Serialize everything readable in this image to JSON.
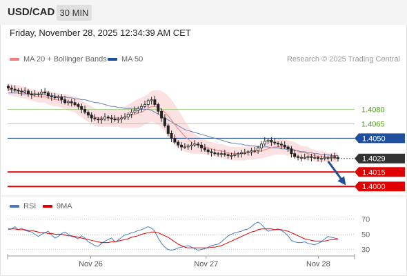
{
  "header": {
    "symbol": "USD/CAD",
    "timeframe": "30 MIN"
  },
  "datetime": "Friday, November 28, 2025 12:34:39 AM CET",
  "legend": {
    "ma20": {
      "label": "MA 20 + Bollinger Bands",
      "color": "#f08080"
    },
    "ma50": {
      "label": "MA 50",
      "color": "#1f4e9c"
    }
  },
  "credit": "Research © 2025 Trading Central",
  "rsi_legend": {
    "rsi": {
      "label": "RSI",
      "color": "#4a78c8"
    },
    "ma9": {
      "label": "9MA",
      "color": "#e00000"
    }
  },
  "chart_data": [
    {
      "type": "candlestick",
      "title": "USD/CAD 30 MIN",
      "ylim": [
        1.3993,
        1.4124
      ],
      "xlim": [
        0,
        100
      ],
      "x_ticks": [
        {
          "label": "Nov 26",
          "x": 25
        },
        {
          "label": "Nov 27",
          "x": 60
        },
        {
          "label": "Nov 28",
          "x": 94
        }
      ],
      "levels": [
        {
          "label": "1.4080",
          "value": 1.408,
          "color": "#a6d08a",
          "text_color": "#4d9a1a",
          "style": "resistance"
        },
        {
          "label": "1.4065",
          "value": 1.4065,
          "color": "#a6d08a",
          "text_color": "#4d9a1a",
          "style": "resistance"
        },
        {
          "label": "1.4050",
          "value": 1.405,
          "color": "#1f4e9c",
          "text_color": "#ffffff",
          "style": "pivot"
        },
        {
          "label": "1.4029",
          "value": 1.4029,
          "color": "#333333",
          "text_color": "#ffffff",
          "style": "current"
        },
        {
          "label": "1.4015",
          "value": 1.4015,
          "color": "#e00000",
          "text_color": "#ffffff",
          "style": "support"
        },
        {
          "label": "1.4000",
          "value": 1.4,
          "color": "#e00000",
          "text_color": "#ffffff",
          "style": "support"
        }
      ],
      "close": [
        1.4102,
        1.4101,
        1.41,
        1.4099,
        1.4098,
        1.4099,
        1.4096,
        1.4095,
        1.4096,
        1.4096,
        1.4098,
        1.4097,
        1.4094,
        1.4093,
        1.4092,
        1.4093,
        1.409,
        1.4087,
        1.4088,
        1.4087,
        1.4085,
        1.4083,
        1.408,
        1.4077,
        1.4074,
        1.4071,
        1.407,
        1.4069,
        1.407,
        1.4072,
        1.4071,
        1.407,
        1.4069,
        1.407,
        1.4071,
        1.4072,
        1.4075,
        1.4077,
        1.4079,
        1.4081,
        1.4083,
        1.4085,
        1.4089,
        1.409,
        1.4085,
        1.4078,
        1.4071,
        1.4063,
        1.4055,
        1.405,
        1.4046,
        1.4043,
        1.4041,
        1.4041,
        1.4042,
        1.4043,
        1.4044,
        1.4043,
        1.404,
        1.4038,
        1.4036,
        1.4035,
        1.4034,
        1.4034,
        1.4034,
        1.4033,
        1.4032,
        1.4032,
        1.4033,
        1.4034,
        1.4035,
        1.4035,
        1.4036,
        1.4037,
        1.4037,
        1.404,
        1.4044,
        1.4047,
        1.4048,
        1.4046,
        1.4045,
        1.4044,
        1.4043,
        1.4041,
        1.4039,
        1.4034,
        1.4031,
        1.403,
        1.403,
        1.403,
        1.4031,
        1.403,
        1.403,
        1.4029,
        1.4029,
        1.403,
        1.403,
        1.4031,
        1.403,
        1.4029
      ],
      "ma20": [
        1.4101,
        1.41,
        1.4099,
        1.4099,
        1.4098,
        1.4097,
        1.4096,
        1.4095,
        1.4094,
        1.4093,
        1.4093,
        1.4093,
        1.4092,
        1.4091,
        1.409,
        1.409,
        1.4089,
        1.4088,
        1.4087,
        1.4086,
        1.4085,
        1.4083,
        1.4081,
        1.4078,
        1.4076,
        1.4074,
        1.4072,
        1.4071,
        1.4071,
        1.4071,
        1.4071,
        1.4071,
        1.4071,
        1.4071,
        1.4071,
        1.4072,
        1.4073,
        1.4074,
        1.4075,
        1.4076,
        1.4077,
        1.4079,
        1.4081,
        1.4083,
        1.4083,
        1.4082,
        1.408,
        1.4077,
        1.4073,
        1.4069,
        1.4064,
        1.406,
        1.4056,
        1.4052,
        1.4049,
        1.4046,
        1.4044,
        1.4043,
        1.4042,
        1.4041,
        1.404,
        1.4039,
        1.4038,
        1.4037,
        1.4037,
        1.4036,
        1.4035,
        1.4034,
        1.4034,
        1.4034,
        1.4034,
        1.4034,
        1.4035,
        1.4035,
        1.4035,
        1.4036,
        1.4037,
        1.4038,
        1.4039,
        1.404,
        1.4041,
        1.4041,
        1.4041,
        1.4041,
        1.404,
        1.4039,
        1.4038,
        1.4036,
        1.4035,
        1.4035,
        1.4034,
        1.4033,
        1.4032,
        1.4031,
        1.4031,
        1.4031,
        1.403,
        1.403,
        1.403,
        1.403
      ],
      "ma50": [
        1.4097,
        1.4097,
        1.4097,
        1.4097,
        1.4096,
        1.4096,
        1.4096,
        1.4096,
        1.4096,
        1.4095,
        1.4095,
        1.4095,
        1.4094,
        1.4094,
        1.4094,
        1.4093,
        1.4093,
        1.4093,
        1.4092,
        1.4092,
        1.4091,
        1.4091,
        1.409,
        1.409,
        1.4089,
        1.4088,
        1.4087,
        1.4087,
        1.4086,
        1.4085,
        1.4084,
        1.4083,
        1.4083,
        1.4082,
        1.4082,
        1.4081,
        1.4081,
        1.4081,
        1.4081,
        1.408,
        1.408,
        1.408,
        1.408,
        1.4079,
        1.4077,
        1.4075,
        1.4073,
        1.4071,
        1.4069,
        1.4067,
        1.4065,
        1.4063,
        1.4061,
        1.4059,
        1.4058,
        1.4057,
        1.4056,
        1.4055,
        1.4054,
        1.4053,
        1.4052,
        1.4051,
        1.405,
        1.4049,
        1.4048,
        1.4047,
        1.4046,
        1.4045,
        1.4045,
        1.4044,
        1.4044,
        1.4043,
        1.4043,
        1.4042,
        1.4042,
        1.4041,
        1.4041,
        1.4041,
        1.4041,
        1.404,
        1.404,
        1.404,
        1.4039,
        1.4039,
        1.4038,
        1.4038,
        1.4037,
        1.4037,
        1.4036,
        1.4036,
        1.4035,
        1.4035,
        1.4034,
        1.4034,
        1.4033,
        1.4033,
        1.4033,
        1.4032,
        1.4032,
        1.4032
      ],
      "bb_halfwidth": [
        0.0006,
        0.0006,
        0.0006,
        0.0006,
        0.0006,
        0.0006,
        0.0006,
        0.0006,
        0.0006,
        0.0006,
        0.0006,
        0.0006,
        0.0007,
        0.0007,
        0.0007,
        0.0007,
        0.0007,
        0.0008,
        0.0008,
        0.0008,
        0.0008,
        0.0009,
        0.0009,
        0.0009,
        0.0009,
        0.0009,
        0.0009,
        0.0009,
        0.0009,
        0.0009,
        0.0009,
        0.0009,
        0.0009,
        0.0009,
        0.001,
        0.0011,
        0.0012,
        0.0013,
        0.0014,
        0.0015,
        0.0015,
        0.0015,
        0.0015,
        0.0016,
        0.0017,
        0.0018,
        0.0019,
        0.002,
        0.0021,
        0.0021,
        0.0021,
        0.002,
        0.0018,
        0.0016,
        0.0014,
        0.0012,
        0.001,
        0.0009,
        0.0008,
        0.0008,
        0.0007,
        0.0007,
        0.0007,
        0.0007,
        0.0007,
        0.0007,
        0.0007,
        0.0007,
        0.0007,
        0.0007,
        0.0007,
        0.0007,
        0.0007,
        0.0007,
        0.0007,
        0.0007,
        0.0008,
        0.0008,
        0.0008,
        0.0008,
        0.0008,
        0.0008,
        0.0008,
        0.0008,
        0.0008,
        0.0008,
        0.0008,
        0.0008,
        0.0007,
        0.0007,
        0.0007,
        0.0006,
        0.0006,
        0.0006,
        0.0006,
        0.0005,
        0.0005,
        0.0005,
        0.0005,
        0.0005
      ],
      "forecast_arrow": {
        "from": [
          97,
          1.4026
        ],
        "to": [
          102,
          1.4003
        ],
        "color": "#1f4e9c"
      }
    },
    {
      "type": "line",
      "title": "RSI",
      "ylim": [
        25,
        75
      ],
      "y_ticks": [
        70,
        50,
        30
      ],
      "series": [
        {
          "name": "RSI",
          "color": "#4a78c8",
          "values": [
            56,
            57,
            60,
            56,
            58,
            55,
            54,
            53,
            50,
            47,
            50,
            52,
            54,
            49,
            45,
            47,
            51,
            53,
            50,
            47,
            46,
            44,
            48,
            45,
            40,
            38,
            35,
            34,
            38,
            41,
            43,
            45,
            40,
            42,
            46,
            49,
            50,
            52,
            53,
            55,
            56,
            58,
            60,
            58,
            54,
            45,
            38,
            33,
            30,
            29,
            30,
            32,
            33,
            34,
            35,
            33,
            31,
            29,
            30,
            31,
            33,
            35,
            36,
            37,
            40,
            44,
            48,
            50,
            52,
            53,
            54,
            56,
            57,
            60,
            64,
            66,
            63,
            58,
            54,
            55,
            56,
            57,
            55,
            52,
            48,
            42,
            40,
            39,
            39,
            40,
            38,
            37,
            36,
            38,
            40,
            44,
            47,
            46,
            45,
            44
          ]
        },
        {
          "name": "9MA",
          "color": "#e00000",
          "values": [
            57,
            57,
            57,
            56,
            56,
            56,
            55,
            55,
            54,
            53,
            52,
            52,
            51,
            51,
            50,
            50,
            50,
            49,
            48,
            48,
            47,
            46,
            45,
            44,
            43,
            42,
            41,
            40,
            39,
            39,
            39,
            40,
            40,
            41,
            42,
            43,
            44,
            46,
            47,
            48,
            50,
            51,
            52,
            53,
            53,
            52,
            50,
            48,
            46,
            43,
            40,
            37,
            35,
            33,
            32,
            32,
            32,
            32,
            32,
            32,
            32,
            33,
            33,
            34,
            35,
            37,
            39,
            41,
            43,
            45,
            47,
            49,
            51,
            53,
            54,
            56,
            57,
            57,
            57,
            57,
            56,
            56,
            56,
            55,
            54,
            52,
            50,
            48,
            46,
            44,
            43,
            42,
            41,
            41,
            41,
            41,
            42,
            43,
            43,
            44
          ]
        }
      ],
      "x_ticks": [
        {
          "label": "Nov 26",
          "x": 25
        },
        {
          "label": "Nov 27",
          "x": 60
        },
        {
          "label": "Nov 28",
          "x": 94
        }
      ]
    }
  ]
}
